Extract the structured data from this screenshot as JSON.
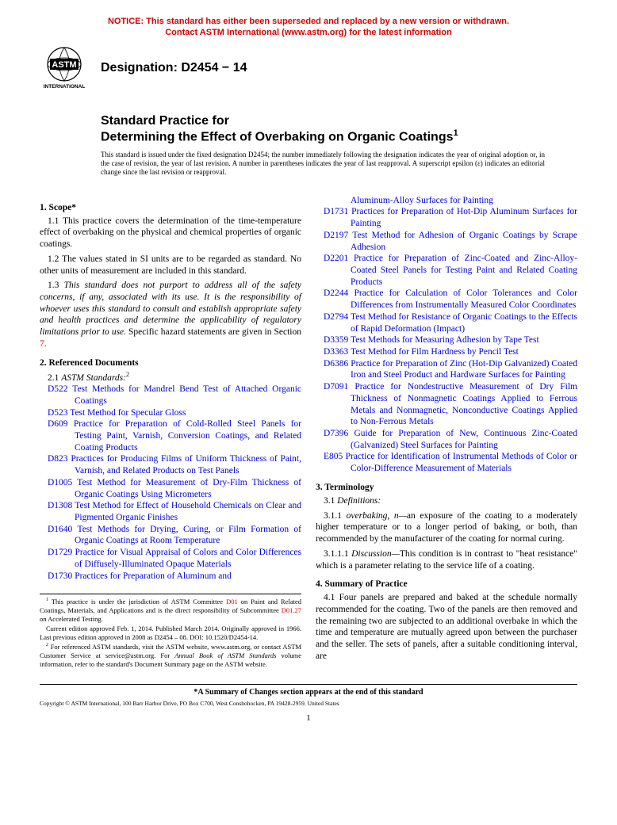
{
  "notice_color": "#dd0000",
  "notice_line1": "NOTICE: This standard has either been superseded and replaced by a new version or withdrawn.",
  "notice_line2": "Contact ASTM International (www.astm.org) for the latest information",
  "designation_label": "Designation: D2454 − 14",
  "title_line1": "Standard Practice for",
  "title_line2": "Determining the Effect of Overbaking on Organic Coatings",
  "title_sup": "1",
  "issuance": "This standard is issued under the fixed designation D2454; the number immediately following the designation indicates the year of original adoption or, in the case of revision, the year of last revision. A number in parentheses indicates the year of last reapproval. A superscript epsilon (ε) indicates an editorial change since the last revision or reapproval.",
  "section1_head": "1. Scope*",
  "para11": "1.1 This practice covers the determination of the time-temperature effect of overbaking on the physical and chemical properties of organic coatings.",
  "para12": "1.2 The values stated in SI units are to be regarded as standard. No other units of measurement are included in this standard.",
  "para13a": "1.3 ",
  "para13b": "This standard does not purport to address all of the safety concerns, if any, associated with its use. It is the responsibility of whoever uses this standard to consult and establish appropriate safety and health practices and determine the applicability of regulatory limitations prior to use.",
  "para13c": " Specific hazard statements are given in Section ",
  "para13d": "7",
  "para13e": ".",
  "section2_head": "2. Referenced Documents",
  "para21a": "2.1 ",
  "para21b": "ASTM Standards:",
  "para21sup": "2",
  "ref_color": "#0000dd",
  "refs_left": [
    {
      "code": "D522",
      "title": "Test Methods for Mandrel Bend Test of Attached Organic Coatings"
    },
    {
      "code": "D523",
      "title": "Test Method for Specular Gloss"
    },
    {
      "code": "D609",
      "title": "Practice for Preparation of Cold-Rolled Steel Panels for Testing Paint, Varnish, Conversion Coatings, and Related Coating Products"
    },
    {
      "code": "D823",
      "title": "Practices for Producing Films of Uniform Thickness of Paint, Varnish, and Related Products on Test Panels"
    },
    {
      "code": "D1005",
      "title": "Test Method for Measurement of Dry-Film Thickness of Organic Coatings Using Micrometers"
    },
    {
      "code": "D1308",
      "title": "Test Method for Effect of Household Chemicals on Clear and Pigmented Organic Finishes"
    },
    {
      "code": "D1640",
      "title": "Test Methods for Drying, Curing, or Film Formation of Organic Coatings at Room Temperature"
    },
    {
      "code": "D1729",
      "title": "Practice for Visual Appraisal of Colors and Color Differences of Diffusely-Illuminated Opaque Materials"
    },
    {
      "code": "D1730",
      "title": "Practices for Preparation of Aluminum and"
    }
  ],
  "ref_continuation": "Aluminum-Alloy Surfaces for Painting",
  "refs_right": [
    {
      "code": "D1731",
      "title": "Practices for Preparation of Hot-Dip Aluminum Surfaces for Painting"
    },
    {
      "code": "D2197",
      "title": "Test Method for Adhesion of Organic Coatings by Scrape Adhesion"
    },
    {
      "code": "D2201",
      "title": "Practice for Preparation of Zinc-Coated and Zinc-Alloy-Coated Steel Panels for Testing Paint and Related Coating Products"
    },
    {
      "code": "D2244",
      "title": "Practice for Calculation of Color Tolerances and Color Differences from Instrumentally Measured Color Coordinates"
    },
    {
      "code": "D2794",
      "title": "Test Method for Resistance of Organic Coatings to the Effects of Rapid Deformation (Impact)"
    },
    {
      "code": "D3359",
      "title": "Test Methods for Measuring Adhesion by Tape Test"
    },
    {
      "code": "D3363",
      "title": "Test Method for Film Hardness by Pencil Test"
    },
    {
      "code": "D6386",
      "title": "Practice for Preparation of Zinc (Hot-Dip Galvanized) Coated Iron and Steel Product and Hardware Surfaces for Painting"
    },
    {
      "code": "D7091",
      "title": "Practice for Nondestructive Measurement of Dry Film Thickness of Nonmagnetic Coatings Applied to Ferrous Metals and Nonmagnetic, Nonconductive Coatings Applied to Non-Ferrous Metals"
    },
    {
      "code": "D7396",
      "title": "Guide for Preparation of New, Continuous Zinc-Coated (Galvanized) Steel Surfaces for Painting"
    },
    {
      "code": "E805",
      "title": "Practice for Identification of Instrumental Methods of Color or Color-Difference Measurement of Materials"
    }
  ],
  "section3_head": "3. Terminology",
  "para31": "3.1 ",
  "para31b": "Definitions:",
  "para311a": "3.1.1 ",
  "para311b": "overbaking, n—",
  "para311c": "an exposure of the coating to a moderately higher temperature or to a longer period of baking, or both, than recommended by the manufacturer of the coating for normal curing.",
  "para3111a": "3.1.1.1 ",
  "para3111b": "Discussion—",
  "para3111c": "This condition is in contrast to \"heat resistance\" which is a parameter relating to the service life of a coating.",
  "section4_head": "4. Summary of Practice",
  "para41": "4.1 Four panels are prepared and baked at the schedule normally recommended for the coating. Two of the panels are then removed and the remaining two are subjected to an additional overbake in which the time and temperature are mutually agreed upon between the purchaser and the seller. The sets of panels, after a suitable conditioning interval, are",
  "fn1a": " This practice is under the jurisdiction of ASTM Committee ",
  "fn1b": "D01",
  "fn1c": " on Paint and Related Coatings, Materials, and Applications and is the direct responsibility of Subcommittee ",
  "fn1d": "D01.27",
  "fn1e": " on Accelerated Testing.",
  "fn1f": "Current edition approved Feb. 1, 2014. Published March 2014. Originally approved in 1966. Last previous edition approved in 2008 as D2454 – 08. DOI: 10.1520/D2454-14.",
  "fn2a": " For referenced ASTM standards, visit the ASTM website, www.astm.org, or contact ASTM Customer Service at service@astm.org. For ",
  "fn2b": "Annual Book of ASTM Standards",
  "fn2c": " volume information, refer to the standard's Document Summary page on the ASTM website.",
  "summary_note": "*A Summary of Changes section appears at the end of this standard",
  "copyright": "Copyright © ASTM International, 100 Barr Harbor Drive, PO Box C700, West Conshohocken, PA 19428-2959. United States",
  "page_num": "1"
}
